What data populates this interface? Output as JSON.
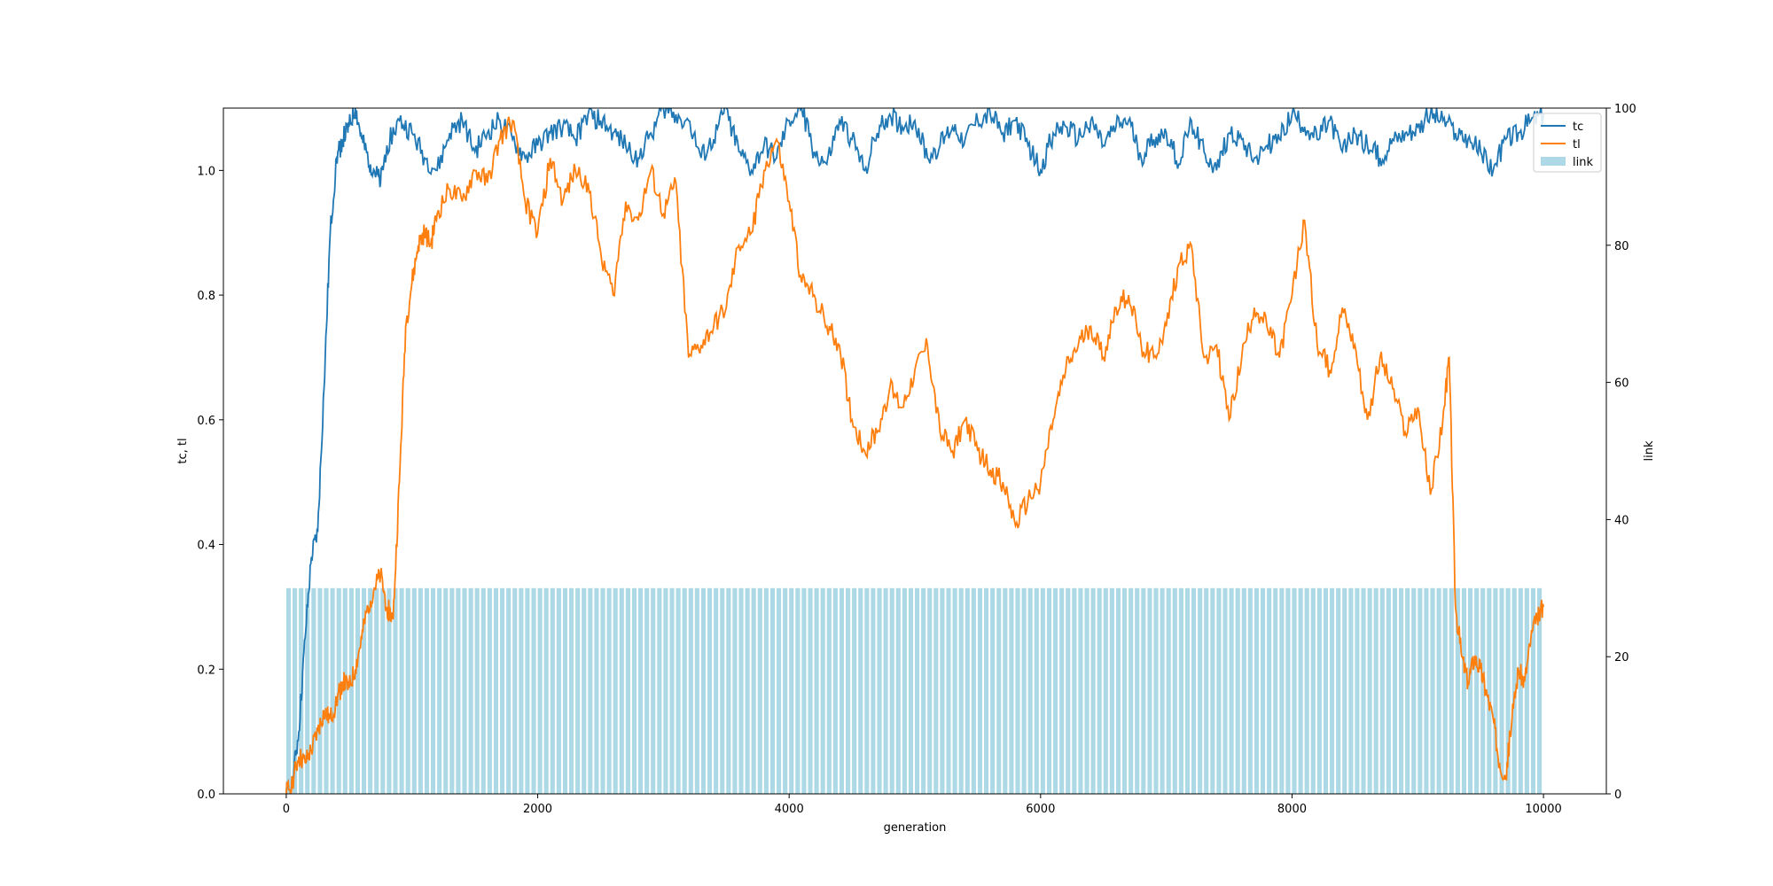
{
  "chart_data": {
    "type": "line+bar",
    "title": "",
    "xlabel": "generation",
    "ylabel_left": "tc, tl",
    "ylabel_right": "link",
    "xlim": [
      -500,
      10500
    ],
    "ylim_left": [
      0,
      1.1
    ],
    "ylim_right": [
      0,
      100
    ],
    "x_ticks": [
      0,
      2000,
      4000,
      6000,
      8000,
      10000
    ],
    "y_ticks_left": [
      0.0,
      0.2,
      0.4,
      0.6,
      0.8,
      1.0
    ],
    "y_ticks_right": [
      0,
      20,
      40,
      60,
      80,
      100
    ],
    "grid": false,
    "legend_position": "top-right",
    "bars": {
      "name": "link",
      "color": "#add8e6",
      "axis": "right",
      "x_start": 0,
      "x_end": 10000,
      "step": 50,
      "value": 30
    },
    "series": [
      {
        "name": "tc",
        "color": "#1f77b4",
        "axis": "left",
        "x": [
          0,
          50,
          100,
          150,
          200,
          250,
          300,
          350,
          400,
          450,
          500,
          550,
          600,
          650,
          700,
          750,
          800,
          900,
          1000,
          1100,
          1200,
          1300,
          1400,
          1500,
          1600,
          1700,
          1800,
          1900,
          2000,
          2100,
          2200,
          2300,
          2400,
          2500,
          2600,
          2700,
          2800,
          2900,
          3000,
          3100,
          3200,
          3300,
          3400,
          3500,
          3600,
          3700,
          3800,
          3900,
          4000,
          4100,
          4200,
          4300,
          4400,
          4500,
          4600,
          4700,
          4800,
          4900,
          5000,
          5100,
          5200,
          5300,
          5400,
          5500,
          5600,
          5700,
          5800,
          5900,
          6000,
          6100,
          6200,
          6300,
          6400,
          6500,
          6600,
          6700,
          6800,
          6900,
          7000,
          7100,
          7200,
          7300,
          7400,
          7500,
          7600,
          7700,
          7800,
          7900,
          8000,
          8100,
          8200,
          8300,
          8400,
          8500,
          8600,
          8700,
          8800,
          8900,
          9000,
          9100,
          9200,
          9300,
          9400,
          9500,
          9600,
          9700,
          9800,
          9900,
          10000
        ],
        "values": [
          0.0,
          0.02,
          0.1,
          0.25,
          0.38,
          0.42,
          0.65,
          0.9,
          1.02,
          1.05,
          1.07,
          1.1,
          1.05,
          1.02,
          1.0,
          0.98,
          1.04,
          1.08,
          1.06,
          1.02,
          1.0,
          1.06,
          1.08,
          1.03,
          1.06,
          1.08,
          1.05,
          1.02,
          1.04,
          1.06,
          1.07,
          1.05,
          1.09,
          1.08,
          1.06,
          1.04,
          1.02,
          1.06,
          1.1,
          1.09,
          1.08,
          1.02,
          1.05,
          1.1,
          1.03,
          1.0,
          1.04,
          1.02,
          1.08,
          1.1,
          1.03,
          1.01,
          1.08,
          1.05,
          1.0,
          1.06,
          1.09,
          1.07,
          1.08,
          1.02,
          1.04,
          1.07,
          1.05,
          1.08,
          1.09,
          1.06,
          1.08,
          1.04,
          1.0,
          1.06,
          1.07,
          1.05,
          1.08,
          1.04,
          1.07,
          1.08,
          1.02,
          1.05,
          1.06,
          1.01,
          1.08,
          1.03,
          1.0,
          1.06,
          1.05,
          1.02,
          1.04,
          1.05,
          1.09,
          1.07,
          1.05,
          1.08,
          1.03,
          1.06,
          1.04,
          1.02,
          1.05,
          1.06,
          1.07,
          1.09,
          1.08,
          1.06,
          1.05,
          1.03,
          1.0,
          1.05,
          1.06,
          1.08,
          1.09
        ]
      },
      {
        "name": "tl",
        "color": "#ff7f0e",
        "axis": "left",
        "x": [
          0,
          50,
          100,
          150,
          200,
          250,
          300,
          350,
          400,
          450,
          500,
          550,
          600,
          650,
          700,
          750,
          800,
          850,
          900,
          950,
          1000,
          1050,
          1100,
          1150,
          1200,
          1300,
          1400,
          1500,
          1600,
          1700,
          1800,
          1900,
          2000,
          2100,
          2200,
          2300,
          2400,
          2500,
          2600,
          2700,
          2800,
          2900,
          3000,
          3100,
          3200,
          3300,
          3400,
          3500,
          3600,
          3700,
          3800,
          3900,
          4000,
          4100,
          4200,
          4300,
          4400,
          4500,
          4600,
          4700,
          4800,
          4900,
          5000,
          5100,
          5200,
          5300,
          5400,
          5500,
          5600,
          5700,
          5800,
          5900,
          6000,
          6100,
          6200,
          6300,
          6400,
          6500,
          6600,
          6700,
          6800,
          6900,
          7000,
          7100,
          7200,
          7300,
          7400,
          7500,
          7600,
          7700,
          7800,
          7900,
          8000,
          8100,
          8200,
          8300,
          8400,
          8500,
          8600,
          8700,
          8800,
          8900,
          9000,
          9100,
          9200,
          9250,
          9300,
          9350,
          9400,
          9450,
          9500,
          9550,
          9600,
          9650,
          9700,
          9750,
          9800,
          9850,
          9900,
          9950,
          10000
        ],
        "values": [
          0.0,
          0.02,
          0.06,
          0.05,
          0.07,
          0.1,
          0.13,
          0.12,
          0.15,
          0.18,
          0.17,
          0.2,
          0.25,
          0.3,
          0.33,
          0.35,
          0.3,
          0.28,
          0.5,
          0.75,
          0.82,
          0.88,
          0.9,
          0.88,
          0.93,
          0.97,
          0.95,
          1.0,
          0.98,
          1.05,
          1.08,
          0.95,
          0.9,
          1.02,
          0.95,
          1.0,
          0.98,
          0.87,
          0.8,
          0.95,
          0.92,
          1.0,
          0.93,
          0.98,
          0.7,
          0.72,
          0.75,
          0.78,
          0.88,
          0.9,
          1.0,
          1.05,
          0.95,
          0.82,
          0.8,
          0.75,
          0.72,
          0.6,
          0.55,
          0.58,
          0.65,
          0.62,
          0.68,
          0.72,
          0.58,
          0.55,
          0.6,
          0.55,
          0.52,
          0.5,
          0.43,
          0.47,
          0.5,
          0.6,
          0.68,
          0.72,
          0.75,
          0.7,
          0.78,
          0.8,
          0.72,
          0.7,
          0.75,
          0.85,
          0.88,
          0.7,
          0.72,
          0.6,
          0.7,
          0.78,
          0.75,
          0.7,
          0.8,
          0.92,
          0.72,
          0.68,
          0.78,
          0.72,
          0.6,
          0.7,
          0.65,
          0.58,
          0.62,
          0.48,
          0.6,
          0.7,
          0.3,
          0.22,
          0.18,
          0.22,
          0.2,
          0.16,
          0.12,
          0.05,
          0.03,
          0.12,
          0.2,
          0.18,
          0.25,
          0.28,
          0.3
        ]
      }
    ]
  }
}
